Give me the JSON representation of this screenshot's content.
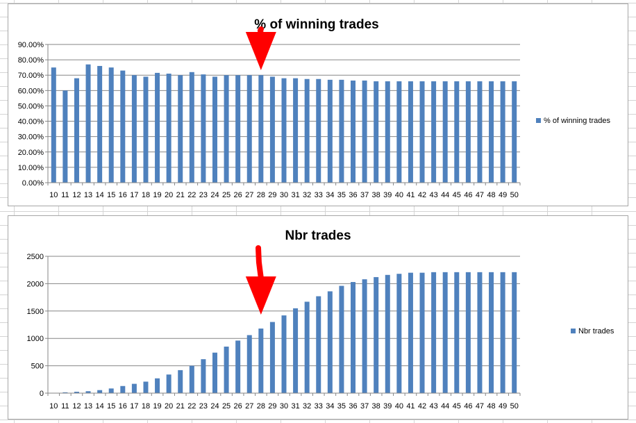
{
  "colors": {
    "bar": "#4f81bd",
    "arrow": "#ff0000",
    "grid": "#868686",
    "background": "#ffffff"
  },
  "chart_data": [
    {
      "type": "bar",
      "title": "% of winning trades",
      "categories": [
        "10",
        "11",
        "12",
        "13",
        "14",
        "15",
        "16",
        "17",
        "18",
        "19",
        "20",
        "21",
        "22",
        "23",
        "24",
        "25",
        "26",
        "27",
        "28",
        "29",
        "30",
        "31",
        "32",
        "33",
        "34",
        "35",
        "36",
        "37",
        "38",
        "39",
        "40",
        "41",
        "42",
        "43",
        "44",
        "45",
        "46",
        "47",
        "48",
        "49",
        "50"
      ],
      "series": [
        {
          "name": "% of winning trades",
          "values": [
            0.75,
            0.6,
            0.68,
            0.77,
            0.76,
            0.75,
            0.73,
            0.7,
            0.69,
            0.715,
            0.71,
            0.7,
            0.72,
            0.705,
            0.69,
            0.7,
            0.7,
            0.7,
            0.7,
            0.69,
            0.68,
            0.68,
            0.675,
            0.675,
            0.67,
            0.67,
            0.665,
            0.665,
            0.66,
            0.66,
            0.66,
            0.66,
            0.66,
            0.66,
            0.66,
            0.66,
            0.66,
            0.66,
            0.66,
            0.66,
            0.66
          ]
        }
      ],
      "ylim": [
        0,
        0.9
      ],
      "yticks": [
        0,
        0.1,
        0.2,
        0.3,
        0.4,
        0.5,
        0.6,
        0.7,
        0.8,
        0.9
      ],
      "ytick_labels": [
        "0.00%",
        "10.00%",
        "20.00%",
        "30.00%",
        "40.00%",
        "50.00%",
        "60.00%",
        "70.00%",
        "80.00%",
        "90.00%"
      ],
      "legend_position": "right",
      "grid": true,
      "annotation": {
        "type": "arrow",
        "target_category": "28",
        "color": "#ff0000"
      }
    },
    {
      "type": "bar",
      "title": "Nbr trades",
      "categories": [
        "10",
        "11",
        "12",
        "13",
        "14",
        "15",
        "16",
        "17",
        "18",
        "19",
        "20",
        "21",
        "22",
        "23",
        "24",
        "25",
        "26",
        "27",
        "28",
        "29",
        "30",
        "31",
        "32",
        "33",
        "34",
        "35",
        "36",
        "37",
        "38",
        "39",
        "40",
        "41",
        "42",
        "43",
        "44",
        "45",
        "46",
        "47",
        "48",
        "49",
        "50"
      ],
      "series": [
        {
          "name": "Nbr trades",
          "values": [
            5,
            15,
            25,
            35,
            55,
            85,
            130,
            170,
            210,
            270,
            340,
            420,
            500,
            620,
            740,
            850,
            960,
            1060,
            1180,
            1300,
            1420,
            1550,
            1670,
            1770,
            1860,
            1960,
            2030,
            2080,
            2120,
            2160,
            2180,
            2200,
            2200,
            2210,
            2210,
            2210,
            2210,
            2210,
            2210,
            2210,
            2210
          ]
        }
      ],
      "ylim": [
        0,
        2500
      ],
      "yticks": [
        0,
        500,
        1000,
        1500,
        2000,
        2500
      ],
      "ytick_labels": [
        "0",
        "500",
        "1000",
        "1500",
        "2000",
        "2500"
      ],
      "legend_position": "right",
      "grid": true,
      "annotation": {
        "type": "arrow",
        "target_category": "28",
        "color": "#ff0000"
      }
    }
  ]
}
